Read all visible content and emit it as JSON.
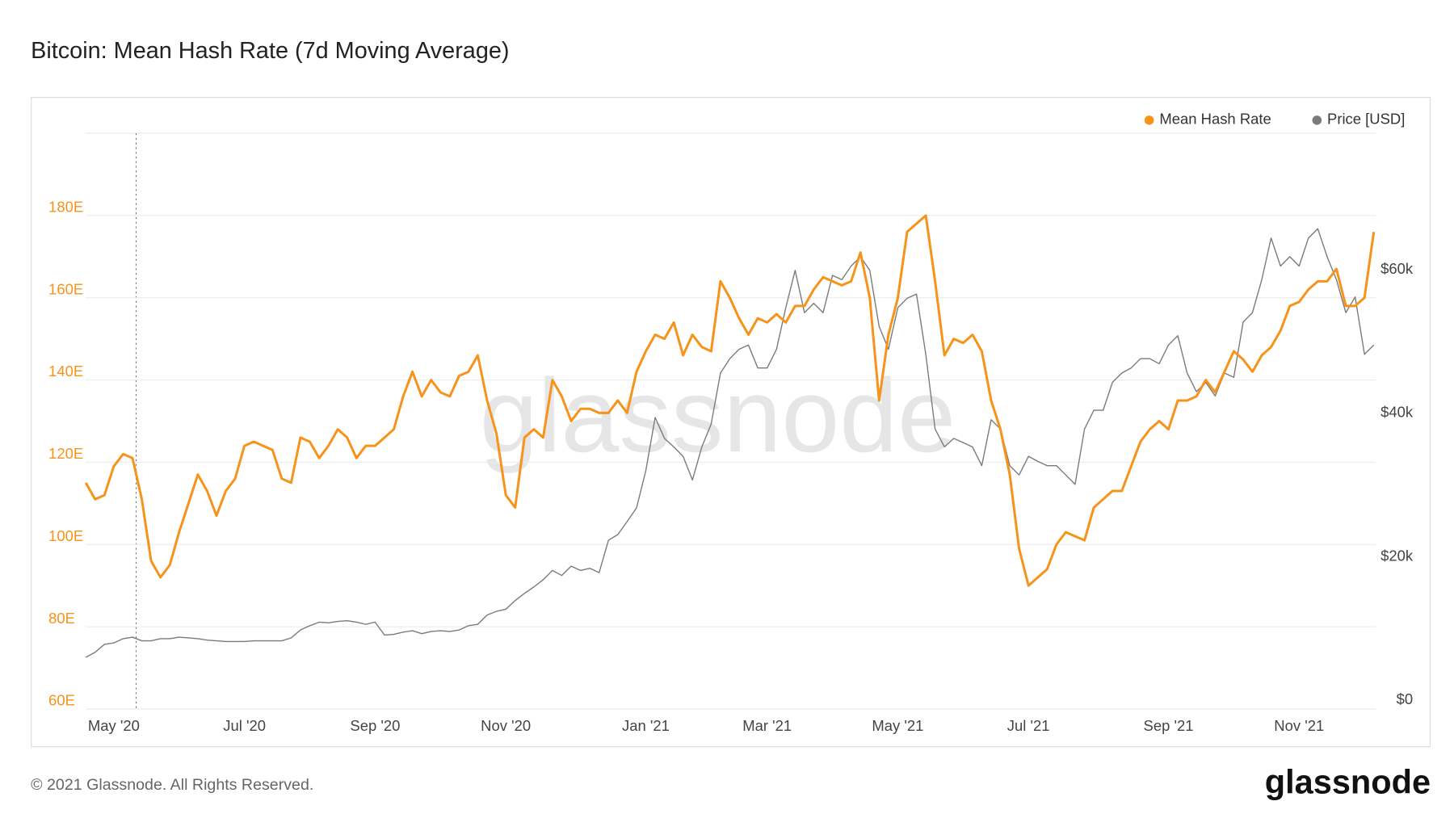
{
  "chart_data": {
    "type": "line",
    "title": "Bitcoin: Mean Hash Rate (7d Moving Average)",
    "watermark": "glassnode",
    "legend": "top-right",
    "grid": true,
    "categories": [
      null,
      null,
      null,
      "May '20",
      null,
      null,
      null,
      null,
      null,
      null,
      null,
      null,
      null,
      null,
      null,
      null,
      null,
      "Jul '20",
      null,
      null,
      null,
      null,
      null,
      null,
      null,
      null,
      null,
      null,
      null,
      null,
      null,
      "Sep '20",
      null,
      null,
      null,
      null,
      null,
      null,
      null,
      null,
      null,
      null,
      null,
      null,
      null,
      "Nov '20",
      null,
      null,
      null,
      null,
      null,
      null,
      null,
      null,
      null,
      null,
      null,
      null,
      null,
      null,
      "Jan '21",
      null,
      null,
      null,
      null,
      null,
      null,
      null,
      null,
      null,
      null,
      null,
      null,
      "Mar '21",
      null,
      null,
      null,
      null,
      null,
      null,
      null,
      null,
      null,
      null,
      null,
      null,
      null,
      "May '21",
      null,
      null,
      null,
      null,
      null,
      null,
      null,
      null,
      null,
      null,
      null,
      null,
      null,
      "Jul '21",
      null,
      null,
      null,
      null,
      null,
      null,
      null,
      null,
      null,
      null,
      null,
      null,
      null,
      null,
      "Sep '21",
      null,
      null,
      null,
      null,
      null,
      null,
      null,
      null,
      null,
      null,
      null,
      null,
      null,
      "Nov '21",
      null,
      null,
      null,
      null,
      null,
      null,
      null,
      null
    ],
    "series": [
      {
        "name": "Price [USD]",
        "color": "#7a7a7a",
        "axis": "y2",
        "values": [
          6000,
          6700,
          7800,
          8000,
          8600,
          8800,
          8300,
          8300,
          8600,
          8600,
          8800,
          8700,
          8600,
          8400,
          8300,
          8200,
          8200,
          8200,
          8300,
          8300,
          8300,
          8300,
          8700,
          9800,
          10400,
          10900,
          10800,
          11000,
          11100,
          10900,
          10600,
          10900,
          9100,
          9200,
          9500,
          9700,
          9300,
          9600,
          9700,
          9600,
          9800,
          10400,
          10600,
          11900,
          12400,
          12700,
          13900,
          14900,
          15800,
          16800,
          18100,
          17400,
          18700,
          18100,
          18400,
          17800,
          22300,
          23100,
          24900,
          26800,
          32000,
          39400,
          36500,
          35300,
          34000,
          30700,
          35300,
          38500,
          45600,
          47600,
          48900,
          49500,
          46300,
          46300,
          48900,
          54700,
          59900,
          54000,
          55300,
          54000,
          59200,
          58600,
          60500,
          61800,
          59900,
          52100,
          48900,
          54700,
          56000,
          56600,
          48200,
          37800,
          35300,
          36500,
          35900,
          35300,
          32700,
          39100,
          37800,
          32700,
          31400,
          34000,
          33300,
          32700,
          32700,
          31400,
          30100,
          37800,
          40400,
          40400,
          44300,
          45600,
          46300,
          47600,
          47600,
          46900,
          49500,
          50800,
          45600,
          43000,
          44300,
          42400,
          45600,
          45000,
          52700,
          54000,
          58600,
          64400,
          60500,
          61800,
          60500,
          64400,
          65700,
          61800,
          58600,
          54000,
          56200,
          48200,
          49500
        ]
      },
      {
        "name": "Mean Hash Rate",
        "color": "#f7931a",
        "values": [
          115,
          111,
          112,
          119,
          122,
          121,
          111,
          96,
          92,
          95,
          103,
          110,
          117,
          113,
          107,
          113,
          116,
          124,
          125,
          124,
          123,
          116,
          115,
          126,
          125,
          121,
          124,
          128,
          126,
          121,
          124,
          124,
          126,
          128,
          136,
          142,
          136,
          140,
          137,
          136,
          141,
          142,
          146,
          135,
          127,
          112,
          109,
          126,
          128,
          126,
          140,
          136,
          130,
          133,
          133,
          132,
          132,
          135,
          132,
          142,
          147,
          151,
          150,
          154,
          146,
          151,
          148,
          147,
          164,
          160,
          155,
          151,
          155,
          154,
          156,
          154,
          158,
          158,
          162,
          165,
          164,
          163,
          164,
          171,
          160,
          135,
          151,
          160,
          176,
          178,
          180,
          164,
          146,
          150,
          149,
          151,
          147,
          135,
          128,
          117,
          99,
          90,
          92,
          94,
          100,
          103,
          102,
          101,
          109,
          111,
          113,
          113,
          119,
          125,
          128,
          130,
          128,
          135,
          135,
          136,
          140,
          137,
          142,
          147,
          145,
          142,
          146,
          148,
          152,
          158,
          159,
          162,
          164,
          164,
          167,
          158,
          158,
          160,
          176
        ]
      }
    ],
    "ylim": [
      60,
      200
    ],
    "yticks": [
      {
        "value": 60,
        "label": "60E"
      },
      {
        "value": 80,
        "label": "80E"
      },
      {
        "value": 100,
        "label": "100E"
      },
      {
        "value": 120,
        "label": "120E"
      },
      {
        "value": 140,
        "label": "140E"
      },
      {
        "value": 160,
        "label": "160E"
      },
      {
        "value": 180,
        "label": "180E"
      }
    ],
    "y2lim": [
      -1200,
      79000
    ],
    "y2ticks": [
      {
        "value": 0,
        "label": "$0"
      },
      {
        "value": 20000,
        "label": "$20k"
      },
      {
        "value": 40000,
        "label": "$40k"
      },
      {
        "value": 60000,
        "label": "$60k"
      }
    ]
  },
  "footer": {
    "copyright": "© 2021 Glassnode. All Rights Reserved.",
    "logo": "glassnode"
  }
}
